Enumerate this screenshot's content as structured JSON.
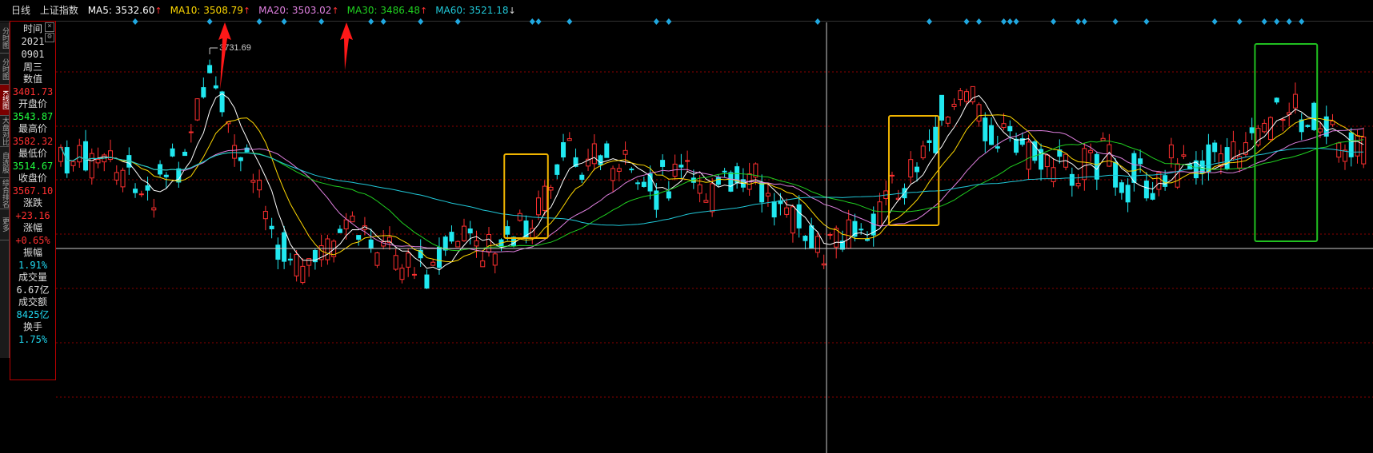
{
  "header": {
    "timeframe": "日线",
    "index_name": "上证指数",
    "ma_legend": [
      {
        "label": "MA5: 3532.60",
        "arrow": "↑",
        "color": "#ffffff"
      },
      {
        "label": "MA10: 3508.79",
        "arrow": "↑",
        "color": "#ffd800"
      },
      {
        "label": "MA20: 3503.02",
        "arrow": "↑",
        "color": "#e080e0"
      },
      {
        "label": "MA30: 3486.48",
        "arrow": "↑",
        "color": "#20d020"
      },
      {
        "label": "MA60: 3521.18",
        "arrow": "↓",
        "color": "#20c8d8"
      }
    ]
  },
  "left_tabs": [
    "分时图",
    "分时图",
    "K线图",
    "大盘对比",
    "自选股",
    "综合排名",
    "更多"
  ],
  "info_panel": {
    "close_icon": "close-icon",
    "settings_icon": "gear-icon",
    "rows": [
      {
        "label": "时间",
        "value": "2021",
        "color": "#dddddd"
      },
      {
        "label": "",
        "value": "0901",
        "color": "#dddddd"
      },
      {
        "label": "",
        "value": "周三",
        "color": "#dddddd"
      },
      {
        "label": "数值",
        "value": "3401.73",
        "color": "#ff3030"
      },
      {
        "label": "开盘价",
        "value": "3543.87",
        "color": "#20ff40"
      },
      {
        "label": "最高价",
        "value": "3582.32",
        "color": "#ff3030"
      },
      {
        "label": "最低价",
        "value": "3514.67",
        "color": "#20ff40"
      },
      {
        "label": "收盘价",
        "value": "3567.10",
        "color": "#ff3030"
      },
      {
        "label": "涨跌",
        "value": "+23.16",
        "color": "#ff3030"
      },
      {
        "label": "涨幅",
        "value": "+0.65%",
        "color": "#ff3030"
      },
      {
        "label": "振幅",
        "value": "1.91%",
        "color": "#20d8f0"
      },
      {
        "label": "成交量",
        "value": "6.67亿",
        "color": "#dddddd"
      },
      {
        "label": "成交额",
        "value": "8425亿",
        "color": "#20d8f0"
      },
      {
        "label": "换手",
        "value": "1.75%",
        "color": "#20d8f0"
      }
    ]
  },
  "chart_data": {
    "type": "candlestick",
    "peak_label": "3731.69",
    "colors": {
      "up": "#ff3030",
      "down": "#20e8f0",
      "grid": "#8a0000",
      "signal": "#20a8e0"
    },
    "note_boxes": [
      {
        "color": "#f0b400",
        "index_from": 72,
        "index_to": 78
      },
      {
        "color": "#f0b400",
        "index_from": 134,
        "index_to": 141
      },
      {
        "color": "#20c020",
        "index_from": 193,
        "index_to": 202
      }
    ],
    "signal_markers": "diamond markers along top of chart",
    "annotations": [
      "red-arrow-1",
      "red-arrow-2"
    ]
  }
}
